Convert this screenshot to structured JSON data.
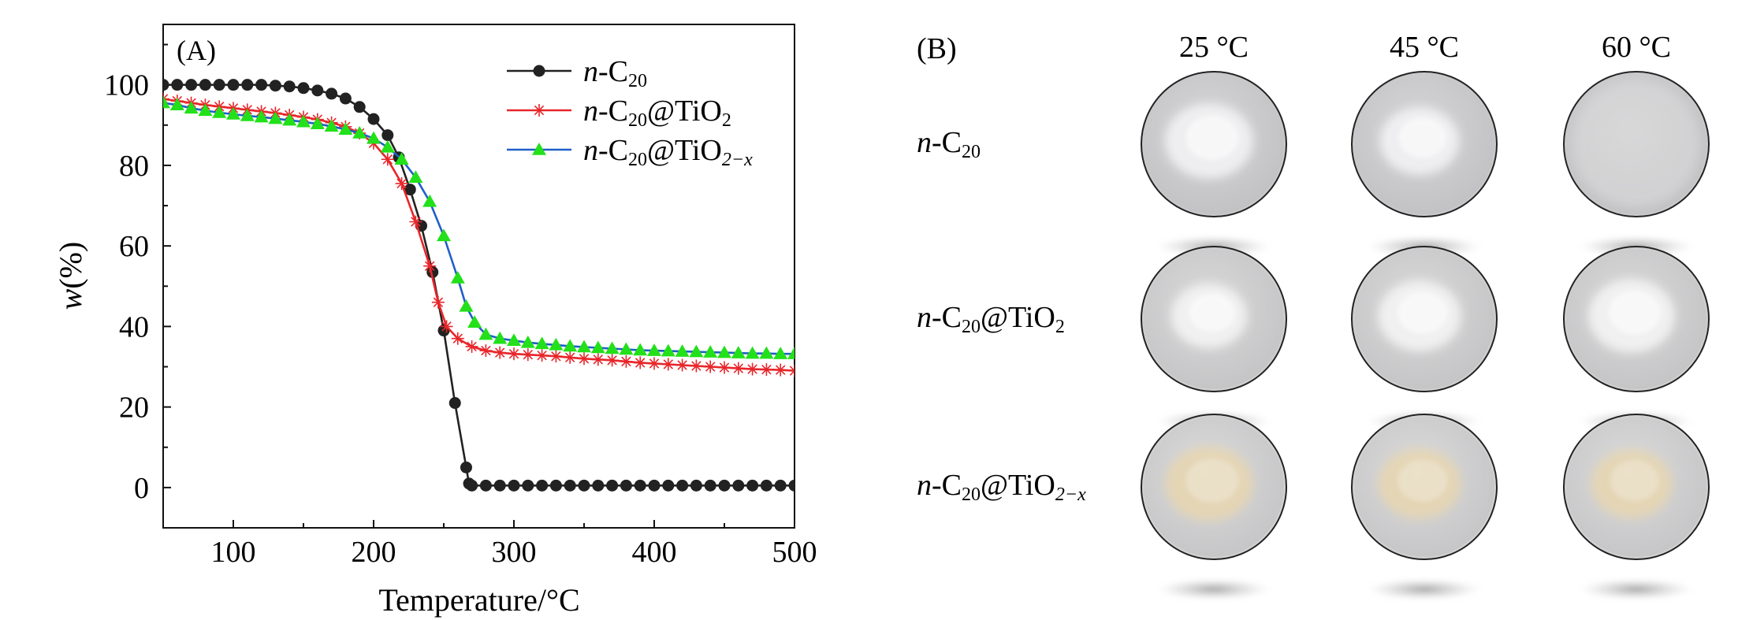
{
  "chart_data": {
    "type": "line",
    "panel_label": "(A)",
    "xlabel": "Temperature/°C",
    "ylabel": "w(%)",
    "xlim": [
      50,
      500
    ],
    "ylim": [
      -10,
      115
    ],
    "xticks": [
      100,
      200,
      300,
      400,
      500
    ],
    "yticks": [
      0,
      20,
      40,
      60,
      80,
      100
    ],
    "legend_position": "top-right",
    "series": [
      {
        "name": "n-C20",
        "legend": {
          "prefix": "n",
          "base": "-C",
          "sub1": "20",
          "mid": "",
          "sub2": ""
        },
        "color": "#222222",
        "marker": "circle",
        "points": [
          [
            50,
            100
          ],
          [
            60,
            100
          ],
          [
            70,
            100
          ],
          [
            80,
            100
          ],
          [
            90,
            100
          ],
          [
            100,
            100
          ],
          [
            110,
            100
          ],
          [
            120,
            100
          ],
          [
            130,
            99.8
          ],
          [
            140,
            99.6
          ],
          [
            150,
            99.2
          ],
          [
            160,
            98.6
          ],
          [
            170,
            97.8
          ],
          [
            180,
            96.6
          ],
          [
            190,
            94.5
          ],
          [
            200,
            91.5
          ],
          [
            210,
            87.5
          ],
          [
            218,
            82
          ],
          [
            226,
            74
          ],
          [
            234,
            65
          ],
          [
            242,
            53.5
          ],
          [
            250,
            39
          ],
          [
            258,
            21
          ],
          [
            266,
            5
          ],
          [
            268,
            1
          ],
          [
            270,
            0.5
          ],
          [
            280,
            0.5
          ],
          [
            290,
            0.5
          ],
          [
            300,
            0.5
          ],
          [
            310,
            0.5
          ],
          [
            320,
            0.5
          ],
          [
            330,
            0.5
          ],
          [
            340,
            0.5
          ],
          [
            350,
            0.5
          ],
          [
            360,
            0.5
          ],
          [
            370,
            0.5
          ],
          [
            380,
            0.5
          ],
          [
            390,
            0.5
          ],
          [
            400,
            0.5
          ],
          [
            410,
            0.5
          ],
          [
            420,
            0.5
          ],
          [
            430,
            0.5
          ],
          [
            440,
            0.5
          ],
          [
            450,
            0.5
          ],
          [
            460,
            0.5
          ],
          [
            470,
            0.5
          ],
          [
            480,
            0.5
          ],
          [
            490,
            0.5
          ],
          [
            500,
            0.5
          ]
        ]
      },
      {
        "name": "n-C20@TiO2",
        "legend": {
          "prefix": "n",
          "base": "-C",
          "sub1": "20",
          "mid": "@TiO",
          "sub2": "2"
        },
        "color": "#e8262a",
        "marker": "asterisk",
        "points": [
          [
            50,
            96.5
          ],
          [
            60,
            96
          ],
          [
            70,
            95.5
          ],
          [
            80,
            95
          ],
          [
            90,
            94.6
          ],
          [
            100,
            94.2
          ],
          [
            110,
            93.8
          ],
          [
            120,
            93.4
          ],
          [
            130,
            93
          ],
          [
            140,
            92.5
          ],
          [
            150,
            92
          ],
          [
            160,
            91.4
          ],
          [
            170,
            90.6
          ],
          [
            180,
            89.6
          ],
          [
            190,
            88
          ],
          [
            200,
            85.5
          ],
          [
            210,
            81.5
          ],
          [
            220,
            75.5
          ],
          [
            230,
            66
          ],
          [
            240,
            55
          ],
          [
            246,
            46
          ],
          [
            252,
            40
          ],
          [
            260,
            37
          ],
          [
            270,
            35
          ],
          [
            280,
            34
          ],
          [
            290,
            33.5
          ],
          [
            300,
            33.2
          ],
          [
            310,
            33
          ],
          [
            320,
            32.8
          ],
          [
            330,
            32.6
          ],
          [
            340,
            32.3
          ],
          [
            350,
            32
          ],
          [
            360,
            31.8
          ],
          [
            370,
            31.6
          ],
          [
            380,
            31.3
          ],
          [
            390,
            31
          ],
          [
            400,
            30.8
          ],
          [
            410,
            30.6
          ],
          [
            420,
            30.4
          ],
          [
            430,
            30.2
          ],
          [
            440,
            30
          ],
          [
            450,
            29.8
          ],
          [
            460,
            29.6
          ],
          [
            470,
            29.4
          ],
          [
            480,
            29.3
          ],
          [
            490,
            29.2
          ],
          [
            500,
            29
          ]
        ]
      },
      {
        "name": "n-C20@TiO2-x",
        "legend": {
          "prefix": "n",
          "base": "-C",
          "sub1": "20",
          "mid": "@TiO",
          "sub2": "2−x"
        },
        "color": "#1f5fc8",
        "marker_color": "#22e019",
        "marker": "triangle",
        "points": [
          [
            50,
            95.5
          ],
          [
            60,
            95
          ],
          [
            70,
            94.2
          ],
          [
            80,
            93.6
          ],
          [
            90,
            93.1
          ],
          [
            100,
            92.7
          ],
          [
            110,
            92.3
          ],
          [
            120,
            92
          ],
          [
            130,
            91.6
          ],
          [
            140,
            91.2
          ],
          [
            150,
            90.8
          ],
          [
            160,
            90.3
          ],
          [
            170,
            89.7
          ],
          [
            180,
            88.9
          ],
          [
            190,
            88
          ],
          [
            200,
            86.7
          ],
          [
            210,
            84.5
          ],
          [
            220,
            81.5
          ],
          [
            230,
            77
          ],
          [
            240,
            71
          ],
          [
            250,
            62.5
          ],
          [
            260,
            52
          ],
          [
            266,
            45
          ],
          [
            272,
            41
          ],
          [
            280,
            38
          ],
          [
            290,
            37
          ],
          [
            300,
            36.5
          ],
          [
            310,
            36
          ],
          [
            320,
            35.7
          ],
          [
            330,
            35.4
          ],
          [
            340,
            35.1
          ],
          [
            350,
            34.9
          ],
          [
            360,
            34.7
          ],
          [
            370,
            34.5
          ],
          [
            380,
            34.3
          ],
          [
            390,
            34.1
          ],
          [
            400,
            34
          ],
          [
            410,
            33.9
          ],
          [
            420,
            33.8
          ],
          [
            430,
            33.7
          ],
          [
            440,
            33.6
          ],
          [
            450,
            33.5
          ],
          [
            460,
            33.4
          ],
          [
            470,
            33.3
          ],
          [
            480,
            33.3
          ],
          [
            490,
            33.2
          ],
          [
            500,
            33.2
          ]
        ]
      }
    ]
  },
  "panel_b": {
    "label": "(B)",
    "columns": [
      "25 °C",
      "45 °C",
      "60 °C"
    ],
    "rows": [
      {
        "label": {
          "prefix": "n",
          "base": "-C",
          "sub1": "20",
          "mid": "",
          "sub2": ""
        },
        "powder_color": "#f4f4f6",
        "dish_color": "#c9c9cb"
      },
      {
        "label": {
          "prefix": "n",
          "base": "-C",
          "sub1": "20",
          "mid": "@TiO",
          "sub2": "2"
        },
        "powder_color": "#f6f6f6",
        "dish_color": "#cfcfd0"
      },
      {
        "label": {
          "prefix": "n",
          "base": "-C",
          "sub1": "20",
          "mid": "@TiO",
          "sub2": "2−x"
        },
        "powder_color": "#e7d6b0",
        "dish_color": "#d2d2d3"
      }
    ]
  }
}
